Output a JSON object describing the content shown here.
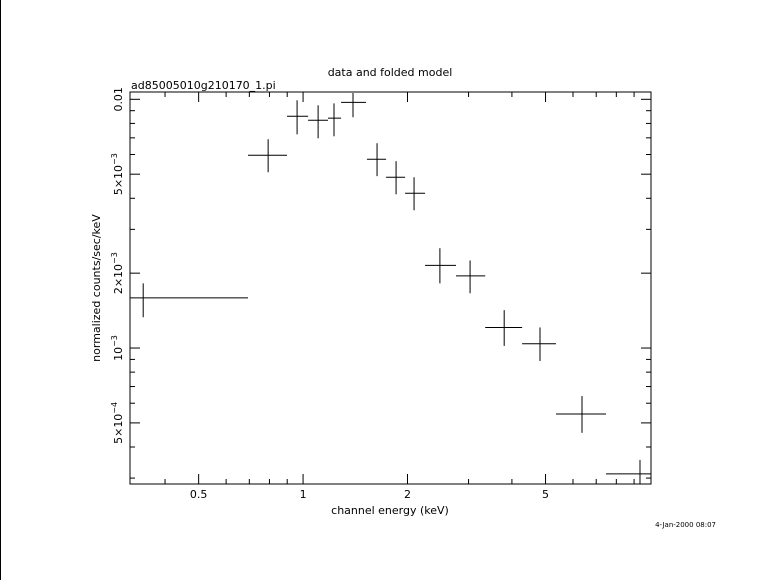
{
  "chart_data": {
    "type": "scatter",
    "title": "data and folded model",
    "subtitle": "ad85005010g210170_1.pi",
    "x_label": "channel energy (keV)",
    "y_label": "normalized counts/sec/keV",
    "timestamp": "4-Jan-2000 08:07",
    "x_log": true,
    "y_log": true,
    "color": "#000000",
    "xlim": [
      0.317,
      10.07
    ],
    "ylim": [
      0.000284,
      0.0107
    ],
    "xticks": [
      0.5,
      1,
      2,
      5
    ],
    "xminor": [
      0.4,
      0.6,
      0.7,
      0.8,
      0.9,
      3,
      4,
      6,
      7,
      8,
      9
    ],
    "yticks": [
      {
        "value": 0.01,
        "label": "0.01"
      },
      {
        "value": 0.005,
        "label": "5×10",
        "exponent": "−3"
      },
      {
        "value": 0.002,
        "label": "2×10",
        "exponent": "−3"
      },
      {
        "value": 0.001,
        "label": "10",
        "exponent": "−3"
      },
      {
        "value": 0.0005,
        "label": "5×10",
        "exponent": "−4"
      }
    ],
    "yminor": [
      0.0003,
      0.0004,
      0.0006,
      0.0007,
      0.0008,
      0.0009,
      0.003,
      0.004,
      0.006,
      0.007,
      0.008,
      0.009
    ],
    "x": [
      0.346,
      0.793,
      0.961,
      1.105,
      1.228,
      1.393,
      1.634,
      1.854,
      2.089,
      2.48,
      3.03,
      3.8,
      4.82,
      6.37,
      9.36
    ],
    "x_low": [
      0.317,
      0.694,
      0.899,
      1.034,
      1.18,
      1.287,
      1.528,
      1.735,
      1.968,
      2.247,
      2.76,
      3.35,
      4.28,
      5.36,
      7.47
    ],
    "x_high": [
      0.694,
      0.899,
      1.034,
      1.18,
      1.287,
      1.519,
      1.735,
      1.968,
      2.247,
      2.76,
      3.35,
      4.28,
      5.36,
      7.47,
      10.07
    ],
    "values": [
      0.00159,
      0.00596,
      0.00855,
      0.00824,
      0.0084,
      0.00972,
      0.00574,
      0.00486,
      0.00419,
      0.00215,
      0.00195,
      0.00121,
      0.00104,
      0.000543,
      0.000312
    ],
    "y_low": [
      0.00133,
      0.00509,
      0.00723,
      0.00697,
      0.0071,
      0.00847,
      0.00491,
      0.00415,
      0.00358,
      0.00182,
      0.00166,
      0.00102,
      0.000887,
      0.000456,
      0.000284
    ],
    "y_high": [
      0.00182,
      0.00691,
      0.00991,
      0.00946,
      0.00963,
      0.0106,
      0.00666,
      0.00564,
      0.00486,
      0.00252,
      0.00225,
      0.00142,
      0.00121,
      0.000641,
      0.000355
    ]
  }
}
